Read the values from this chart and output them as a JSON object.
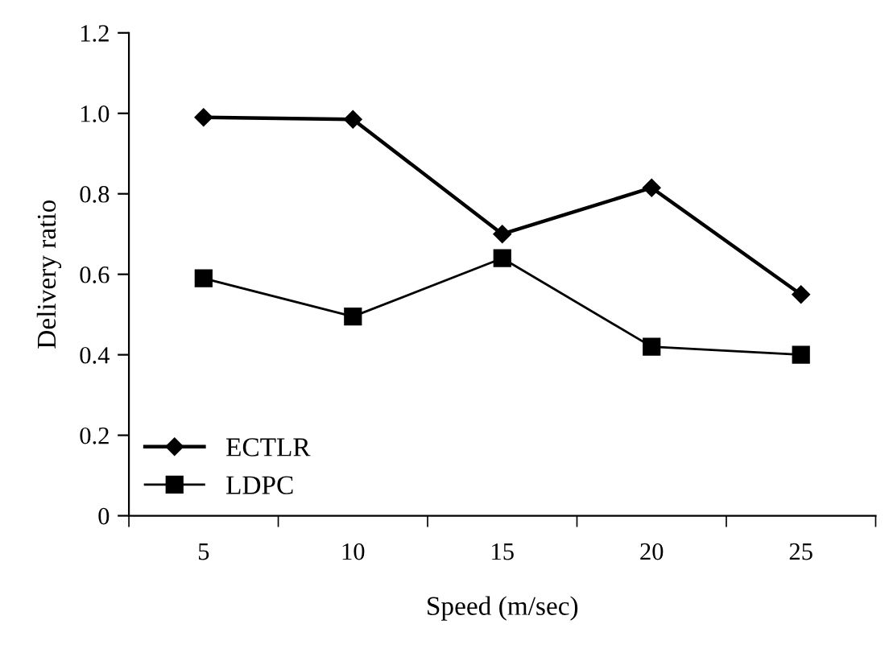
{
  "chart_data": {
    "type": "line",
    "xlabel": "Speed (m/sec)",
    "ylabel": "Delivery ratio",
    "categories": [
      "5",
      "10",
      "15",
      "20",
      "25"
    ],
    "series": [
      {
        "name": "ECTLR",
        "color": "#000000",
        "marker": "diamond",
        "values": [
          0.99,
          0.985,
          0.7,
          0.815,
          0.55
        ]
      },
      {
        "name": "LDPC",
        "color": "#000000",
        "marker": "square",
        "values": [
          0.59,
          0.495,
          0.64,
          0.42,
          0.4
        ]
      }
    ],
    "ylim": [
      0,
      1.2
    ],
    "yticks": [
      0,
      0.2,
      0.4,
      0.6,
      0.8,
      {
        "value": 1,
        "label": "1.0"
      },
      1.2
    ],
    "grid": false,
    "legend": "bottom left",
    "line_style": "solid"
  }
}
